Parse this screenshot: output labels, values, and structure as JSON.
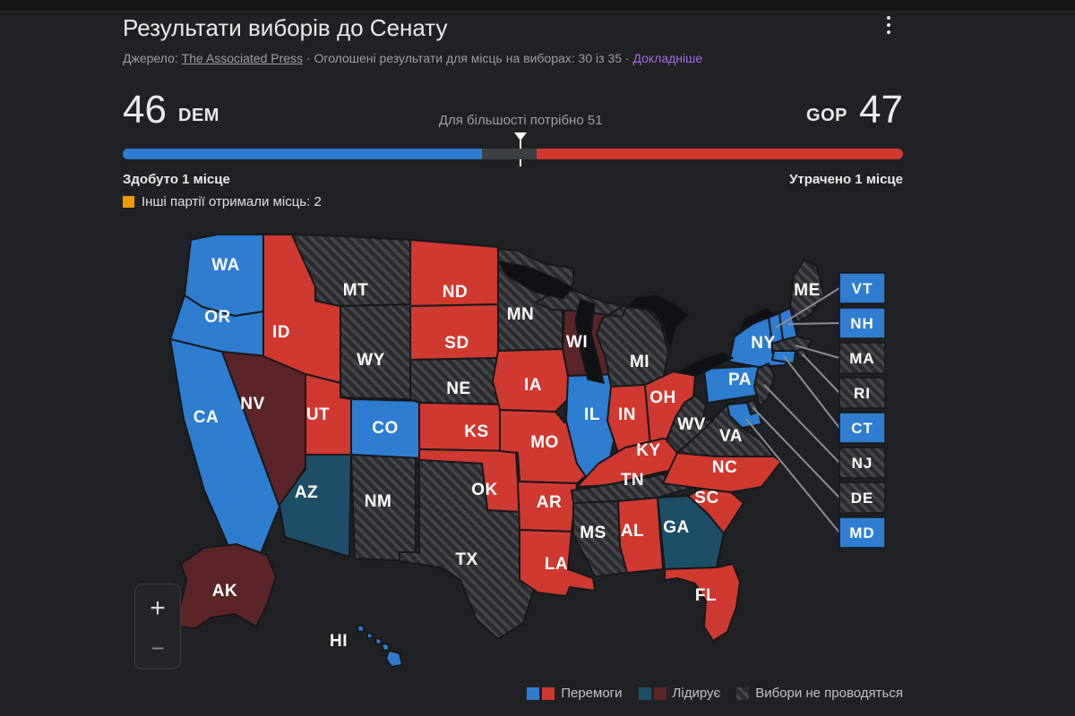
{
  "header": {
    "title": "Результати виборів до Сенату",
    "source_prefix": "Джерело:",
    "source_link": "The Associated Press",
    "separator": "·",
    "results_text": "Оголошені результати для місць на виборах: 30 із 35",
    "more_link": "Докладніше"
  },
  "tally": {
    "dem_seats": "46",
    "dem_label": "DEM",
    "gop_label": "GOP",
    "gop_seats": "47",
    "majority_text": "Для більшості потрібно 51",
    "dem_change": "Здобуто 1 місце",
    "gop_change": "Утрачено 1 місце",
    "other_parties_text": "Інші партії отримали місць: 2",
    "bar": {
      "dem_pct": 46,
      "gop_pct": 47,
      "marker_pct": 51
    }
  },
  "colors": {
    "dem": "#2e7dd1",
    "gop": "#d0392f",
    "dem_lead": "#1e4f68",
    "gop_lead": "#5a2428",
    "other": "#f29900",
    "bar_track": "#3c4043",
    "link_purple": "#a36ee8",
    "hatch_base": "#2b2c30",
    "hatch_stripe": "#46474c"
  },
  "map": {
    "states": [
      {
        "id": "WA",
        "label": "WA",
        "status": "dem"
      },
      {
        "id": "OR",
        "label": "OR",
        "status": "dem"
      },
      {
        "id": "CA",
        "label": "CA",
        "status": "dem"
      },
      {
        "id": "NV",
        "label": "NV",
        "status": "gop_lead"
      },
      {
        "id": "ID",
        "label": "ID",
        "status": "gop"
      },
      {
        "id": "MT",
        "label": "MT",
        "status": "none"
      },
      {
        "id": "WY",
        "label": "WY",
        "status": "none"
      },
      {
        "id": "UT",
        "label": "UT",
        "status": "gop"
      },
      {
        "id": "AZ",
        "label": "AZ",
        "status": "dem_lead"
      },
      {
        "id": "NM",
        "label": "NM",
        "status": "none"
      },
      {
        "id": "CO",
        "label": "CO",
        "status": "dem"
      },
      {
        "id": "ND",
        "label": "ND",
        "status": "gop"
      },
      {
        "id": "SD",
        "label": "SD",
        "status": "gop"
      },
      {
        "id": "NE",
        "label": "NE",
        "status": "none"
      },
      {
        "id": "KS",
        "label": "KS",
        "status": "gop"
      },
      {
        "id": "OK",
        "label": "OK",
        "status": "gop"
      },
      {
        "id": "TX",
        "label": "TX",
        "status": "none"
      },
      {
        "id": "MN",
        "label": "MN",
        "status": "none"
      },
      {
        "id": "IA",
        "label": "IA",
        "status": "gop"
      },
      {
        "id": "MO",
        "label": "MO",
        "status": "gop"
      },
      {
        "id": "AR",
        "label": "AR",
        "status": "gop"
      },
      {
        "id": "LA",
        "label": "LA",
        "status": "gop"
      },
      {
        "id": "WI",
        "label": "WI",
        "status": "gop_lead"
      },
      {
        "id": "IL",
        "label": "IL",
        "status": "dem"
      },
      {
        "id": "MI",
        "label": "MI",
        "status": "none"
      },
      {
        "id": "IN",
        "label": "IN",
        "status": "gop"
      },
      {
        "id": "OH",
        "label": "OH",
        "status": "gop"
      },
      {
        "id": "KY",
        "label": "KY",
        "status": "gop"
      },
      {
        "id": "TN",
        "label": "TN",
        "status": "none"
      },
      {
        "id": "MS",
        "label": "MS",
        "status": "none"
      },
      {
        "id": "AL",
        "label": "AL",
        "status": "gop"
      },
      {
        "id": "GA",
        "label": "GA",
        "status": "dem_lead"
      },
      {
        "id": "FL",
        "label": "FL",
        "status": "gop"
      },
      {
        "id": "SC",
        "label": "SC",
        "status": "gop"
      },
      {
        "id": "NC",
        "label": "NC",
        "status": "gop"
      },
      {
        "id": "WV",
        "label": "WV",
        "status": "none"
      },
      {
        "id": "VA",
        "label": "VA",
        "status": "none"
      },
      {
        "id": "PA",
        "label": "PA",
        "status": "dem"
      },
      {
        "id": "NY",
        "label": "NY",
        "status": "dem"
      },
      {
        "id": "VT",
        "label": "",
        "status": "dem"
      },
      {
        "id": "NH",
        "label": "",
        "status": "dem"
      },
      {
        "id": "ME",
        "label": "ME",
        "status": "none"
      },
      {
        "id": "MA",
        "label": "",
        "status": "none"
      },
      {
        "id": "RI",
        "label": "",
        "status": "none"
      },
      {
        "id": "CT",
        "label": "",
        "status": "dem"
      },
      {
        "id": "NJ",
        "label": "",
        "status": "none"
      },
      {
        "id": "DE",
        "label": "",
        "status": "none"
      },
      {
        "id": "MD",
        "label": "",
        "status": "dem"
      },
      {
        "id": "AK",
        "label": "AK",
        "status": "gop_lead"
      },
      {
        "id": "HI",
        "label": "HI",
        "status": "dem"
      }
    ],
    "side_labels": [
      {
        "id": "VT",
        "label": "VT",
        "status": "dem"
      },
      {
        "id": "NH",
        "label": "NH",
        "status": "dem"
      },
      {
        "id": "MA",
        "label": "MA",
        "status": "none"
      },
      {
        "id": "RI",
        "label": "RI",
        "status": "none"
      },
      {
        "id": "CT",
        "label": "CT",
        "status": "dem"
      },
      {
        "id": "NJ",
        "label": "NJ",
        "status": "none"
      },
      {
        "id": "DE",
        "label": "DE",
        "status": "none"
      },
      {
        "id": "MD",
        "label": "MD",
        "status": "dem"
      }
    ]
  },
  "legend": {
    "wins": "Перемоги",
    "leads": "Лідирує",
    "no_election": "Вибори не проводяться"
  },
  "zoom_control": {
    "plus": "+",
    "minus": "−"
  }
}
